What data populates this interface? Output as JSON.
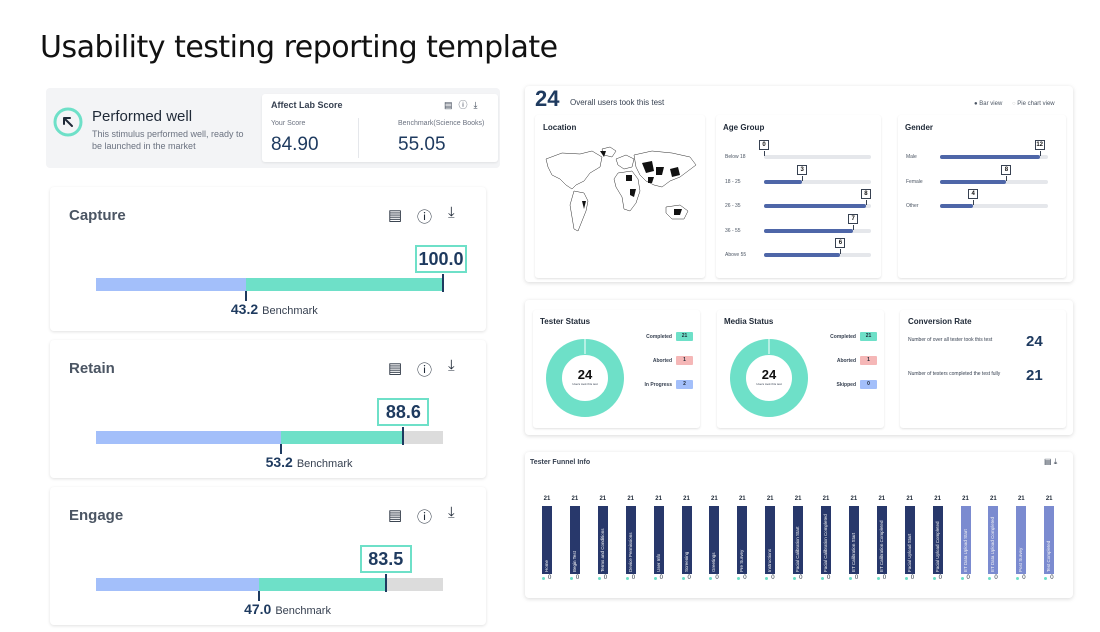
{
  "page_title": "Usability testing reporting template",
  "performed": {
    "title": "Performed well",
    "description": "This stimulus performed well, ready to be launched in the market"
  },
  "lab_score": {
    "title": "Affect Lab Score",
    "your_score_label": "Your Score",
    "your_score": "84.90",
    "benchmark_label": "Benchmark(Science Books)",
    "benchmark": "55.05"
  },
  "metrics": [
    {
      "name": "Capture",
      "score": "100.0",
      "score_value": 100.0,
      "benchmark": "43.2",
      "benchmark_value": 43.2,
      "benchmark_label": "Benchmark"
    },
    {
      "name": "Retain",
      "score": "88.6",
      "score_value": 88.6,
      "benchmark": "53.2",
      "benchmark_value": 53.2,
      "benchmark_label": "Benchmark"
    },
    {
      "name": "Engage",
      "score": "83.5",
      "score_value": 83.5,
      "benchmark": "47.0",
      "benchmark_value": 47.0,
      "benchmark_label": "Benchmark"
    }
  ],
  "overview": {
    "total": "24",
    "total_label": "Overall users took this test",
    "view_bar": "Bar view",
    "view_pie": "Pie chart view",
    "location_title": "Location",
    "age_title": "Age Group",
    "gender_title": "Gender",
    "age_groups": [
      {
        "label": "Below 18",
        "value": "0",
        "n": 0
      },
      {
        "label": "18 - 25",
        "value": "3",
        "n": 3
      },
      {
        "label": "26 - 35",
        "value": "8",
        "n": 8
      },
      {
        "label": "36 - 55",
        "value": "7",
        "n": 7
      },
      {
        "label": "Above 55",
        "value": "6",
        "n": 6
      }
    ],
    "genders": [
      {
        "label": "Male",
        "value": "12",
        "n": 12
      },
      {
        "label": "Female",
        "value": "8",
        "n": 8
      },
      {
        "label": "Other",
        "value": "4",
        "n": 4
      }
    ]
  },
  "tester_status": {
    "title": "Tester Status",
    "center": "24",
    "center_sub": "Users took this test",
    "rows": [
      {
        "label": "Completed",
        "value": "21",
        "color": "green"
      },
      {
        "label": "Aborted",
        "value": "1",
        "color": "red"
      },
      {
        "label": "In Progress",
        "value": "2",
        "color": "blue"
      }
    ]
  },
  "media_status": {
    "title": "Media Status",
    "center": "24",
    "center_sub": "Users took this test",
    "rows": [
      {
        "label": "Completed",
        "value": "21",
        "color": "green"
      },
      {
        "label": "Aborted",
        "value": "1",
        "color": "red"
      },
      {
        "label": "Skipped",
        "value": "0",
        "color": "blue"
      }
    ]
  },
  "conversion": {
    "title": "Conversion Rate",
    "row1_label": "Number of over all tester took this test",
    "row1_value": "24",
    "row2_label": "Number of testers completed the test fully",
    "row2_value": "21"
  },
  "funnel": {
    "title": "Tester Funnel Info",
    "steps": [
      {
        "label": "Home",
        "top": "21",
        "bottom": "0"
      },
      {
        "label": "Begin Test",
        "top": "21",
        "bottom": "0"
      },
      {
        "label": "Terms and Conditions",
        "top": "21",
        "bottom": "0"
      },
      {
        "label": "Device Permissions",
        "top": "21",
        "bottom": "0"
      },
      {
        "label": "User Info",
        "top": "21",
        "bottom": "0"
      },
      {
        "label": "Screening",
        "top": "21",
        "bottom": "0"
      },
      {
        "label": "Greetings",
        "top": "21",
        "bottom": "0"
      },
      {
        "label": "Pre Survey",
        "top": "21",
        "bottom": "0"
      },
      {
        "label": "Instructions",
        "top": "21",
        "bottom": "0"
      },
      {
        "label": "Facial Calibration Start",
        "top": "21",
        "bottom": "0"
      },
      {
        "label": "Facial Calibration Completed",
        "top": "21",
        "bottom": "0"
      },
      {
        "label": "ET Calibration Start",
        "top": "21",
        "bottom": "0"
      },
      {
        "label": "ET Calibration Completed",
        "top": "21",
        "bottom": "0"
      },
      {
        "label": "Facial Upload Start",
        "top": "21",
        "bottom": "0"
      },
      {
        "label": "Facial Upload Completed",
        "top": "21",
        "bottom": "0"
      },
      {
        "label": "ET Data Upload Start",
        "top": "21",
        "bottom": "0"
      },
      {
        "label": "ET Data Upload Completed",
        "top": "21",
        "bottom": "0"
      },
      {
        "label": "Post Survey",
        "top": "21",
        "bottom": "0"
      },
      {
        "label": "Test Completed",
        "top": "21",
        "bottom": "0"
      }
    ]
  },
  "colors": {
    "accent_green": "#6ee0c8",
    "accent_blue": "#a3bffa",
    "navy": "#1e3a5f",
    "bar_navy": "#4e66a8"
  }
}
